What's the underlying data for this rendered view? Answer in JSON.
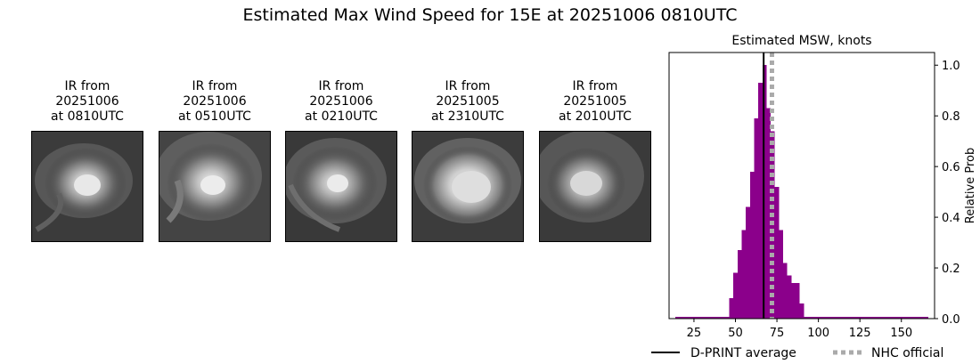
{
  "figure": {
    "title": "Estimated Max Wind Speed for 15E at 20251006 0810UTC"
  },
  "ir_panels": [
    {
      "line1": "IR from",
      "line2": "20251006",
      "line3": "at 0810UTC"
    },
    {
      "line1": "IR from",
      "line2": "20251006",
      "line3": "at 0510UTC"
    },
    {
      "line1": "IR from",
      "line2": "20251006",
      "line3": "at 0210UTC"
    },
    {
      "line1": "IR from",
      "line2": "20251005",
      "line3": "at 2310UTC"
    },
    {
      "line1": "IR from",
      "line2": "20251005",
      "line3": "at 2010UTC"
    }
  ],
  "chart_data": {
    "type": "bar",
    "title": "Estimated MSW, knots",
    "xlabel": "",
    "ylabel": "Relative Prob",
    "xlim": [
      10,
      170
    ],
    "ylim": [
      0,
      1.05
    ],
    "xticks": [
      25,
      50,
      75,
      100,
      125,
      150
    ],
    "yticks": [
      0.0,
      0.2,
      0.4,
      0.6,
      0.8,
      1.0
    ],
    "ytick_labels": [
      "0.0",
      "0.2",
      "0.4",
      "0.6",
      "0.8",
      "1.0"
    ],
    "y_axis_side": "right",
    "bar_width": 2.5,
    "bar_color": "#8b008b",
    "bins": [
      {
        "x": 15,
        "y": 0.007
      },
      {
        "x": 17.5,
        "y": 0.007
      },
      {
        "x": 20,
        "y": 0.007
      },
      {
        "x": 22.5,
        "y": 0.007
      },
      {
        "x": 25,
        "y": 0.007
      },
      {
        "x": 27.5,
        "y": 0.007
      },
      {
        "x": 30,
        "y": 0.007
      },
      {
        "x": 32.5,
        "y": 0.007
      },
      {
        "x": 35,
        "y": 0.007
      },
      {
        "x": 37.5,
        "y": 0.007
      },
      {
        "x": 40,
        "y": 0.007
      },
      {
        "x": 42.5,
        "y": 0.007
      },
      {
        "x": 45,
        "y": 0.007
      },
      {
        "x": 47.5,
        "y": 0.08
      },
      {
        "x": 50,
        "y": 0.18
      },
      {
        "x": 52.5,
        "y": 0.27
      },
      {
        "x": 55,
        "y": 0.35
      },
      {
        "x": 57.5,
        "y": 0.44
      },
      {
        "x": 60,
        "y": 0.58
      },
      {
        "x": 62.5,
        "y": 0.79
      },
      {
        "x": 65,
        "y": 0.93
      },
      {
        "x": 67.5,
        "y": 1.0
      },
      {
        "x": 70,
        "y": 0.83
      },
      {
        "x": 72.5,
        "y": 0.74
      },
      {
        "x": 75,
        "y": 0.52
      },
      {
        "x": 77.5,
        "y": 0.35
      },
      {
        "x": 80,
        "y": 0.22
      },
      {
        "x": 82.5,
        "y": 0.17
      },
      {
        "x": 85,
        "y": 0.14
      },
      {
        "x": 87.5,
        "y": 0.14
      },
      {
        "x": 90,
        "y": 0.06
      },
      {
        "x": 92.5,
        "y": 0.007
      },
      {
        "x": 95,
        "y": 0.007
      },
      {
        "x": 97.5,
        "y": 0.007
      },
      {
        "x": 100,
        "y": 0.007
      },
      {
        "x": 102.5,
        "y": 0.007
      },
      {
        "x": 105,
        "y": 0.007
      },
      {
        "x": 107.5,
        "y": 0.007
      },
      {
        "x": 110,
        "y": 0.007
      },
      {
        "x": 112.5,
        "y": 0.007
      },
      {
        "x": 115,
        "y": 0.007
      },
      {
        "x": 117.5,
        "y": 0.007
      },
      {
        "x": 120,
        "y": 0.007
      },
      {
        "x": 122.5,
        "y": 0.007
      },
      {
        "x": 125,
        "y": 0.007
      },
      {
        "x": 127.5,
        "y": 0.007
      },
      {
        "x": 130,
        "y": 0.007
      },
      {
        "x": 132.5,
        "y": 0.007
      },
      {
        "x": 135,
        "y": 0.007
      },
      {
        "x": 137.5,
        "y": 0.007
      },
      {
        "x": 140,
        "y": 0.007
      },
      {
        "x": 142.5,
        "y": 0.007
      },
      {
        "x": 145,
        "y": 0.007
      },
      {
        "x": 147.5,
        "y": 0.007
      },
      {
        "x": 150,
        "y": 0.007
      },
      {
        "x": 152.5,
        "y": 0.007
      },
      {
        "x": 155,
        "y": 0.007
      },
      {
        "x": 157.5,
        "y": 0.007
      },
      {
        "x": 160,
        "y": 0.007
      },
      {
        "x": 162.5,
        "y": 0.007
      },
      {
        "x": 165,
        "y": 0.007
      }
    ],
    "reference_lines": [
      {
        "name": "D-PRINT average",
        "x": 67,
        "style": "solid",
        "color": "#000000"
      },
      {
        "name": "NHC official",
        "x": 72,
        "style": "dotted",
        "color": "#aaaaaa"
      }
    ],
    "legend": {
      "placement": "bottom",
      "entries": [
        "D-PRINT average",
        "NHC official"
      ]
    }
  }
}
